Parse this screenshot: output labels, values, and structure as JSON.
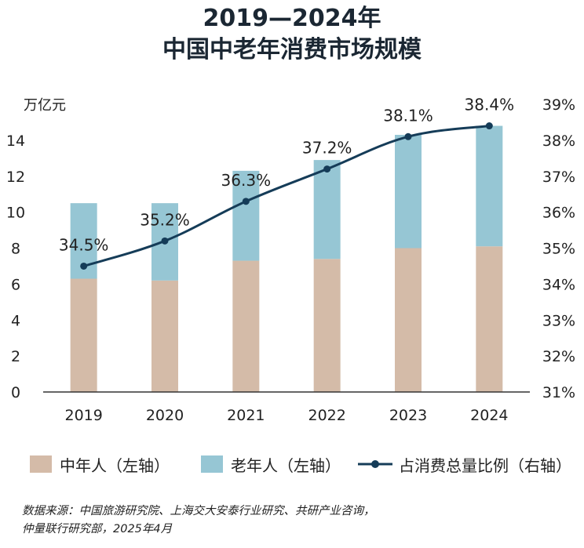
{
  "title": {
    "line1": "2019—2024年",
    "line2": "中国中老年消费市场规模"
  },
  "colors": {
    "middle": "#d4bba8",
    "old": "#96c6d4",
    "line": "#153c58",
    "axis": "#333333"
  },
  "chart_data": {
    "type": "bar",
    "stacked": true,
    "categories": [
      "2019",
      "2020",
      "2021",
      "2022",
      "2023",
      "2024"
    ],
    "series": [
      {
        "name": "中年人（左轴）",
        "axis": "left",
        "values": [
          6.3,
          6.2,
          7.3,
          7.4,
          8.0,
          8.1
        ]
      },
      {
        "name": "老年人（左轴）",
        "axis": "left",
        "values": [
          4.2,
          4.3,
          5.0,
          5.5,
          6.3,
          6.7
        ]
      },
      {
        "name": "占消费总量比例（右轴）",
        "axis": "right",
        "type": "line",
        "values": [
          34.5,
          35.2,
          36.3,
          37.2,
          38.1,
          38.4
        ],
        "labels": [
          "34.5%",
          "35.2%",
          "36.3%",
          "37.2%",
          "38.1%",
          "38.4%"
        ]
      }
    ],
    "yunit": "万亿元",
    "ylim": [
      0,
      16
    ],
    "yticks": [
      "0",
      "2",
      "4",
      "6",
      "8",
      "10",
      "12",
      "14"
    ],
    "y2lim": [
      31,
      39
    ],
    "y2ticks": [
      "31%",
      "32%",
      "33%",
      "34%",
      "35%",
      "36%",
      "37%",
      "38%",
      "39%"
    ],
    "legend": [
      "中年人（左轴）",
      "老年人（左轴）",
      "占消费总量比例（右轴）"
    ]
  },
  "source": {
    "line1": "数据来源：中国旅游研究院、上海交大安泰行业研究、共研产业咨询，",
    "line2": "仲量联行研究部，2025年4月"
  }
}
